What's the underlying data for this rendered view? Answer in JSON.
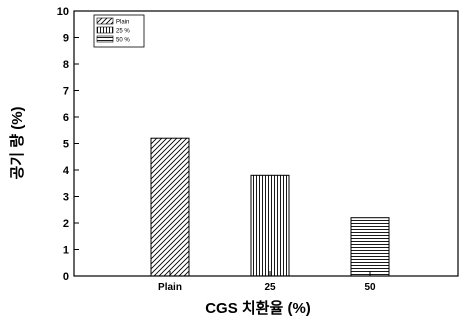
{
  "chart_data": {
    "type": "bar",
    "categories": [
      "Plain",
      "25",
      "50"
    ],
    "values": [
      5.2,
      3.8,
      2.2
    ],
    "patterns": [
      "diagonal",
      "vertical",
      "horizontal"
    ],
    "legend": [
      "Plain",
      "25 %",
      "50 %"
    ],
    "legend_position": "top-left",
    "xlabel": "CGS 치환율 (%)",
    "ylabel": "공기 량 (%)",
    "ylim": [
      0,
      10
    ],
    "yticks": [
      0,
      1,
      2,
      3,
      4,
      5,
      6,
      7,
      8,
      9,
      10
    ],
    "grid": false,
    "bar_fill": "#ffffff",
    "stroke": "#000000"
  }
}
